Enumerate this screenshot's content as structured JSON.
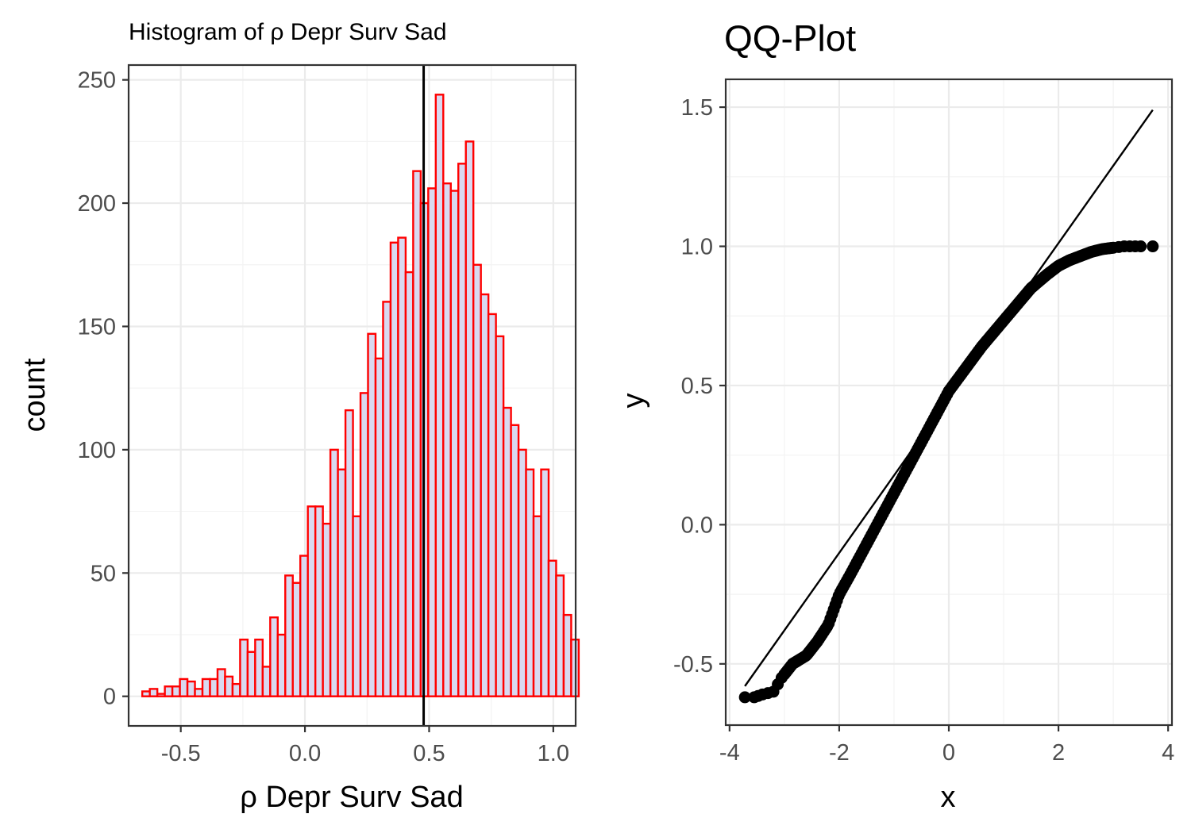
{
  "chart_data": [
    {
      "type": "bar",
      "title": "Histogram of ρ Depr Surv Sad",
      "xlabel": "ρ Depr Surv Sad",
      "ylabel": "count",
      "xlim": [
        -0.71,
        1.09
      ],
      "ylim": [
        -12,
        256
      ],
      "xticks": [
        -0.5,
        0.0,
        0.5,
        1.0
      ],
      "xtick_labels": [
        "-0.5",
        "0.0",
        "0.5",
        "1.0"
      ],
      "yticks": [
        0,
        50,
        100,
        150,
        200,
        250
      ],
      "ytick_labels": [
        "0",
        "50",
        "100",
        "150",
        "200",
        "250"
      ],
      "bin_start": -0.655,
      "bin_width": 0.0303,
      "counts": [
        2,
        3,
        1,
        4,
        4,
        7,
        6,
        3,
        7,
        7,
        11,
        8,
        5,
        23,
        18,
        23,
        12,
        32,
        25,
        49,
        46,
        57,
        77,
        77,
        70,
        100,
        92,
        116,
        73,
        123,
        147,
        137,
        160,
        184,
        186,
        172,
        213,
        200,
        206,
        244,
        208,
        205,
        216,
        225,
        175,
        163,
        155,
        146,
        117,
        110,
        100,
        92,
        73,
        92,
        55,
        49,
        33,
        23
      ],
      "fill_color": "#d9d9f0",
      "edge_color": "#ff0000",
      "vline_x": 0.478,
      "vline_color": "#000000",
      "grid": true
    },
    {
      "type": "scatter",
      "title": "QQ-Plot",
      "xlabel": "x",
      "ylabel": "y",
      "xlim": [
        -4.07,
        4.07
      ],
      "ylim": [
        -0.72,
        1.6
      ],
      "xticks": [
        -4,
        -2,
        0,
        2,
        4
      ],
      "xtick_labels": [
        "-4",
        "-2",
        "0",
        "2",
        "4"
      ],
      "yticks": [
        -0.5,
        0.0,
        0.5,
        1.0,
        1.5
      ],
      "ytick_labels": [
        "-0.5",
        "0.0",
        "0.5",
        "1.0",
        "1.5"
      ],
      "reference_line": {
        "x": [
          -3.72,
          3.72
        ],
        "y": [
          -0.58,
          1.49
        ]
      },
      "quantile_curve": {
        "x": [
          -3.72,
          -3.55,
          -3.4,
          -3.2,
          -3.05,
          -2.85,
          -2.6,
          -2.4,
          -2.2,
          -2.0,
          -1.8,
          -1.5,
          -1.2,
          -0.9,
          -0.6,
          -0.3,
          0.0,
          0.3,
          0.6,
          0.9,
          1.2,
          1.5,
          1.8,
          2.0,
          2.2,
          2.4,
          2.6,
          2.8,
          3.0,
          3.2,
          3.5,
          3.72
        ],
        "y": [
          -0.62,
          -0.62,
          -0.61,
          -0.6,
          -0.55,
          -0.5,
          -0.47,
          -0.42,
          -0.36,
          -0.25,
          -0.18,
          -0.07,
          0.04,
          0.15,
          0.26,
          0.37,
          0.48,
          0.56,
          0.64,
          0.71,
          0.78,
          0.85,
          0.9,
          0.93,
          0.95,
          0.965,
          0.98,
          0.99,
          0.995,
          1.0,
          1.0,
          1.0
        ]
      },
      "point_color": "#000000",
      "grid": true
    }
  ]
}
